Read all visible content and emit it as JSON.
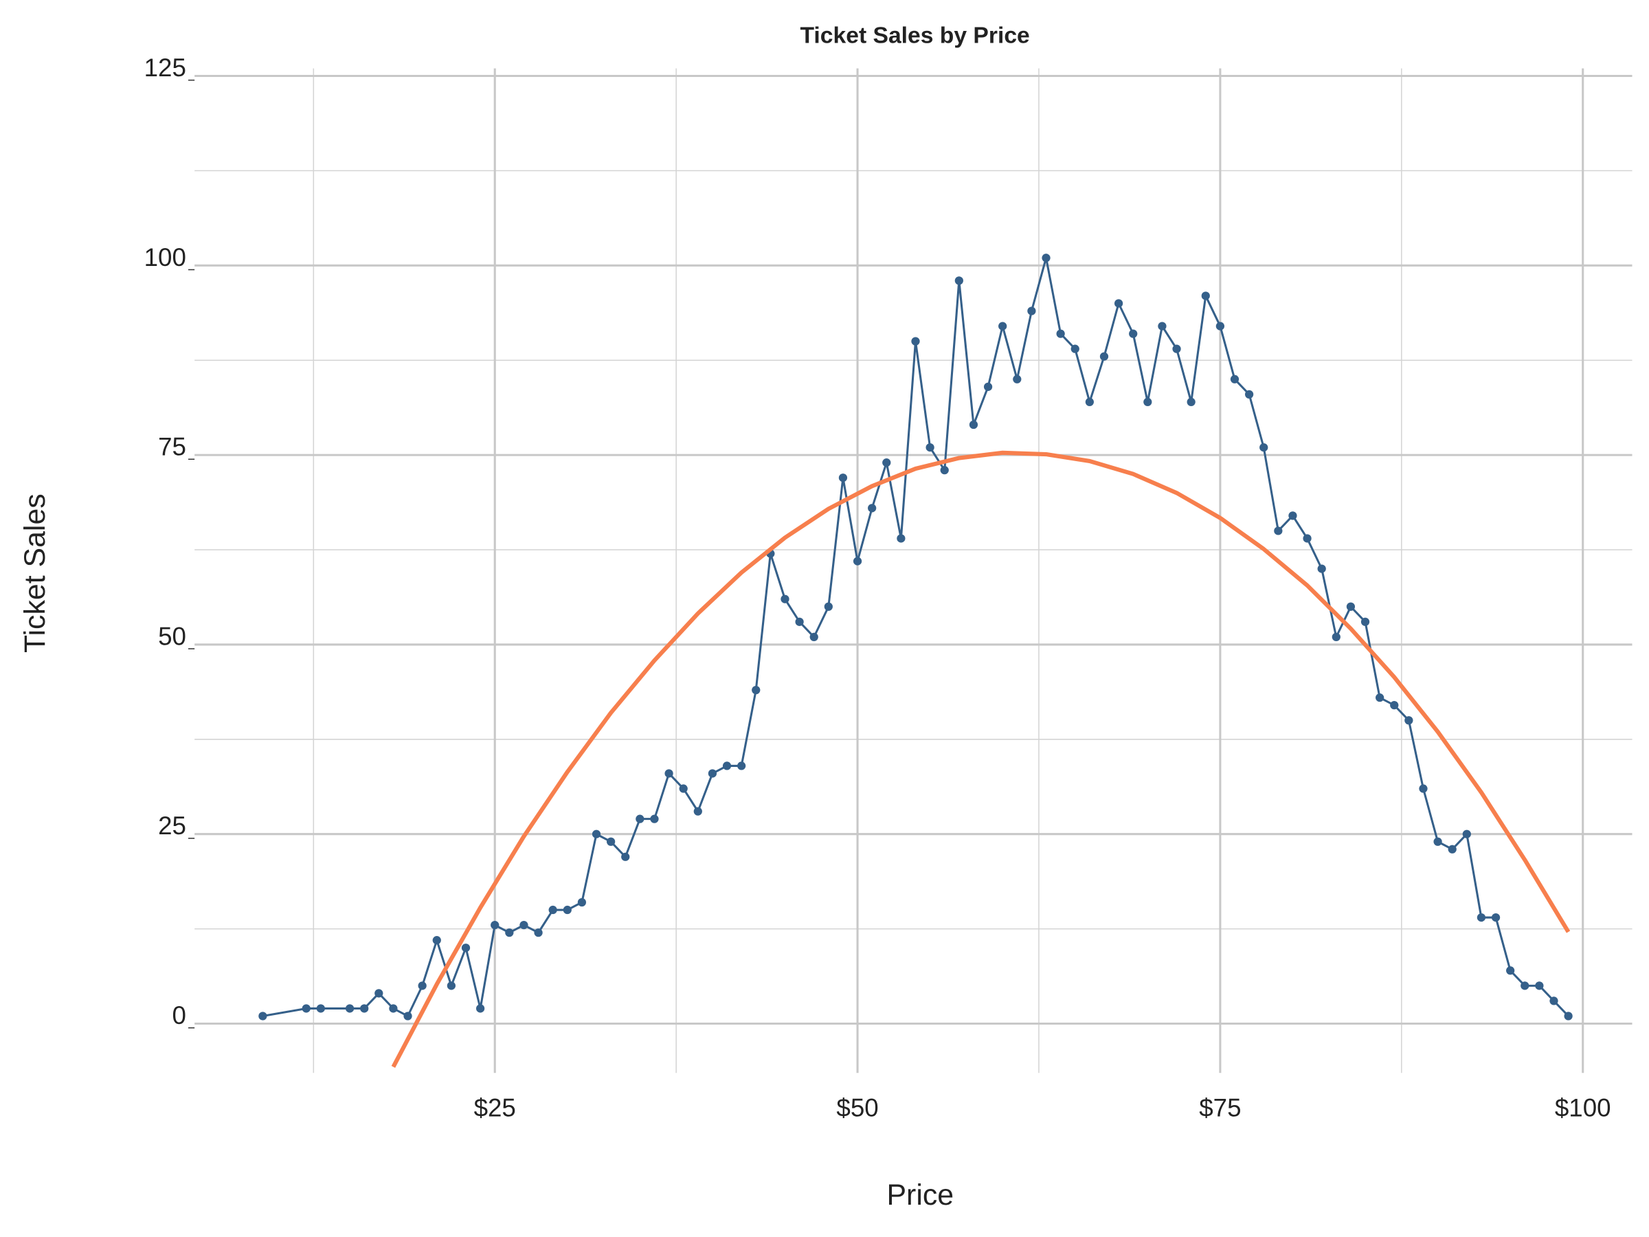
{
  "chart_data": {
    "type": "line",
    "title": "Ticket Sales by Price",
    "x_label": "Price",
    "y_label": "Ticket Sales",
    "xlim": [
      4.3,
      103.4
    ],
    "ylim": [
      -6.5,
      126
    ],
    "xticks": [
      {
        "value": 25,
        "label": "$25"
      },
      {
        "value": 50,
        "label": "$50"
      },
      {
        "value": 75,
        "label": "$75"
      },
      {
        "value": 100,
        "label": "$100"
      }
    ],
    "x_minor_ticks": [
      12.5,
      37.5,
      62.5,
      87.5
    ],
    "yticks": [
      0,
      25,
      50,
      75,
      100,
      125
    ],
    "y_minor_ticks": [
      12.5,
      37.5,
      62.5,
      87.5,
      112.5
    ],
    "grid": true,
    "series": [
      {
        "color": "#35608a",
        "markers": true,
        "x": [
          9,
          12,
          13,
          15,
          16,
          17,
          18,
          19,
          20,
          21,
          22,
          23,
          24,
          25,
          26,
          27,
          28,
          29,
          30,
          31,
          32,
          33,
          34,
          35,
          36,
          37,
          38,
          39,
          40,
          41,
          42,
          43,
          44,
          45,
          46,
          47,
          48,
          49,
          50,
          51,
          52,
          53,
          54,
          55,
          56,
          57,
          58,
          59,
          60,
          61,
          62,
          63,
          64,
          65,
          66,
          67,
          68,
          69,
          70,
          71,
          72,
          73,
          74,
          75,
          76,
          77,
          78,
          79,
          80,
          81,
          82,
          83,
          84,
          85,
          86,
          87,
          88,
          89,
          90,
          91,
          92,
          93,
          94,
          95,
          96,
          97,
          98,
          99
        ],
        "values": [
          1,
          2,
          2,
          2,
          2,
          4,
          2,
          1,
          5,
          11,
          5,
          10,
          2,
          13,
          12,
          13,
          12,
          15,
          15,
          16,
          25,
          24,
          22,
          27,
          27,
          33,
          31,
          28,
          33,
          34,
          34,
          44,
          62,
          56,
          53,
          51,
          55,
          72,
          61,
          68,
          74,
          64,
          90,
          76,
          73,
          98,
          79,
          84,
          92,
          85,
          94,
          101,
          91,
          89,
          82,
          88,
          95,
          91,
          82,
          92,
          89,
          82,
          96,
          92,
          85,
          83,
          76,
          65,
          67,
          64,
          60,
          51,
          55,
          53,
          43,
          42,
          40,
          31,
          24,
          23,
          25,
          14,
          14,
          7,
          5,
          5,
          3,
          1
        ]
      },
      {
        "color": "#f77f4d",
        "markers": false,
        "x": [
          18,
          21,
          24,
          27,
          30,
          33,
          36,
          39,
          42,
          45,
          48,
          51,
          54,
          57,
          60,
          63,
          66,
          69,
          72,
          75,
          78,
          81,
          84,
          87,
          90,
          93,
          96,
          99
        ],
        "values": [
          -5.7,
          5.2,
          15.3,
          24.7,
          33.2,
          41.0,
          47.9,
          54.1,
          59.5,
          64.1,
          67.9,
          70.9,
          73.2,
          74.6,
          75.3,
          75.1,
          74.2,
          72.5,
          70.0,
          66.7,
          62.6,
          57.8,
          52.1,
          45.7,
          38.5,
          30.5,
          21.6,
          12.1
        ]
      }
    ]
  }
}
